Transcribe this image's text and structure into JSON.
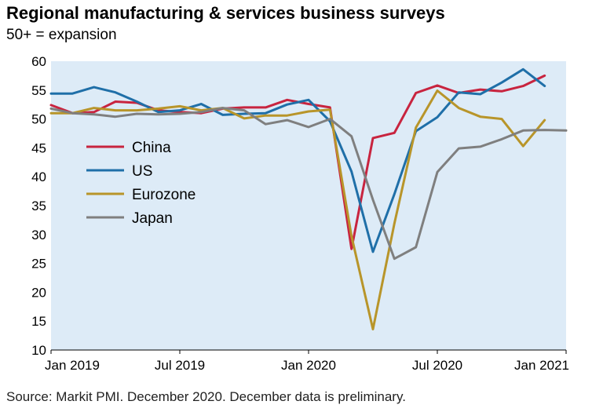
{
  "chart_data": {
    "type": "line",
    "title": "Regional manufacturing & services business surveys",
    "subtitle": "50+ = expansion",
    "source": "Source: Markit PMI. December 2020. December data is preliminary.",
    "ylim": [
      10,
      60
    ],
    "y_ticks": [
      "60",
      "55",
      "50",
      "45",
      "40",
      "35",
      "30",
      "25",
      "20",
      "15",
      "10"
    ],
    "x_ticks": [
      "Jan 2019",
      "Jul 2019",
      "Jan 2020",
      "Jul 2020",
      "Jan 2021"
    ],
    "x_tick_months": [
      0,
      6,
      12,
      18,
      24
    ],
    "grid": false,
    "legend": "inside-left",
    "series": [
      {
        "name": "China",
        "color": "#c8243f",
        "x": [
          0,
          1,
          2,
          3,
          4,
          5,
          6,
          7,
          8,
          9,
          10,
          11,
          12,
          13,
          14,
          15,
          16,
          17,
          18,
          19,
          20,
          21,
          22,
          23
        ],
        "values": [
          52.4,
          51.0,
          51.2,
          53.0,
          52.8,
          51.5,
          51.2,
          51.0,
          51.8,
          52.0,
          52.0,
          53.3,
          52.6,
          52.0,
          27.5,
          46.7,
          47.6,
          54.5,
          55.8,
          54.5,
          55.1,
          54.8,
          55.7,
          57.5
        ]
      },
      {
        "name": "US",
        "color": "#1f6fa8",
        "x": [
          0,
          1,
          2,
          3,
          4,
          5,
          6,
          7,
          8,
          9,
          10,
          11,
          12,
          13,
          14,
          15,
          16,
          17,
          18,
          19,
          20,
          21,
          22,
          23,
          24
        ],
        "values": [
          54.4,
          54.4,
          55.5,
          54.6,
          53.0,
          51.2,
          51.5,
          52.6,
          50.7,
          50.9,
          51.0,
          52.5,
          53.3,
          49.6,
          40.9,
          27.0,
          37.0,
          47.9,
          50.3,
          54.6,
          54.3,
          56.3,
          58.6,
          55.7,
          null
        ]
      },
      {
        "name": "Eurozone",
        "color": "#b8952a",
        "x": [
          0,
          1,
          2,
          3,
          4,
          5,
          6,
          7,
          8,
          9,
          10,
          11,
          12,
          13,
          14,
          15,
          16,
          17,
          18,
          19,
          20,
          21,
          22,
          23,
          24
        ],
        "values": [
          51.0,
          51.0,
          51.9,
          51.5,
          51.5,
          51.8,
          52.2,
          51.5,
          51.9,
          50.1,
          50.6,
          50.6,
          51.3,
          51.6,
          29.7,
          13.6,
          31.9,
          48.5,
          54.9,
          51.9,
          50.4,
          50.0,
          45.3,
          49.8,
          null
        ]
      },
      {
        "name": "Japan",
        "color": "#7f7f7f",
        "x": [
          0,
          1,
          2,
          3,
          4,
          5,
          6,
          7,
          8,
          9,
          10,
          11,
          12,
          13,
          14,
          15,
          16,
          17,
          18,
          19,
          20,
          21,
          22,
          23,
          24
        ],
        "values": [
          51.8,
          51.0,
          50.8,
          50.4,
          50.9,
          50.8,
          50.9,
          51.2,
          51.9,
          51.5,
          49.1,
          49.8,
          48.6,
          50.0,
          47.0,
          36.0,
          25.8,
          27.8,
          40.8,
          44.9,
          45.2,
          46.5,
          48.0,
          48.1,
          48.0
        ]
      }
    ]
  }
}
